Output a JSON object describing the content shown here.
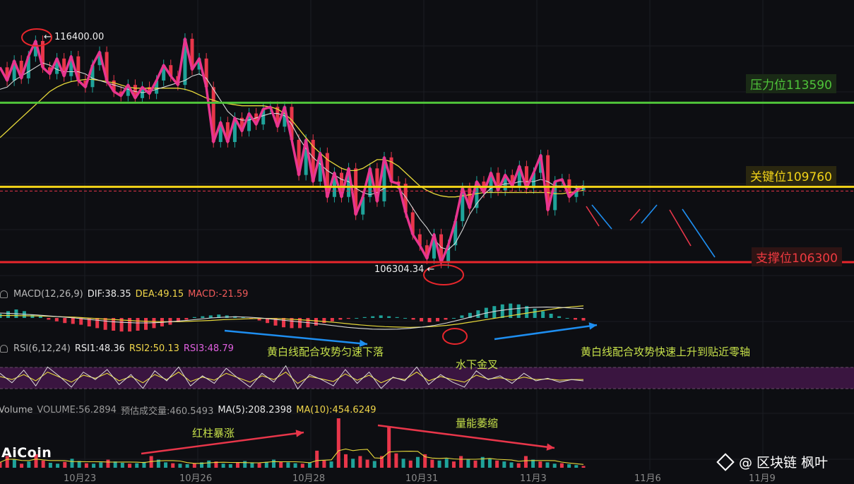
{
  "chart_data": {
    "type": "candlestick",
    "symbol_prices": {
      "high_marker": "← 116400.00",
      "low_marker": "106304.34 ←"
    },
    "levels": [
      {
        "label": "压力位113590",
        "value": 113590,
        "color": "#4fc43a"
      },
      {
        "label": "关键位109760",
        "value": 109760,
        "color": "#f2d318"
      },
      {
        "label": "支撑位106300",
        "value": 106300,
        "color": "#e8262c"
      }
    ],
    "price_range": [
      105400,
      117300
    ],
    "close_path": [
      115200,
      114600,
      115500,
      114700,
      115700,
      116400,
      115200,
      114900,
      115600,
      114800,
      115700,
      114600,
      114300,
      115300,
      115900,
      114600,
      114100,
      113900,
      114400,
      113800,
      114300,
      114000,
      114600,
      115300,
      114800,
      114400,
      116500,
      115100,
      115600,
      114300,
      111800,
      112700,
      111800,
      112900,
      112300,
      113100,
      112600,
      113300,
      113400,
      112500,
      113400,
      111900,
      110300,
      111900,
      110000,
      111300,
      109300,
      110400,
      109300,
      110600,
      108500,
      109300,
      110600,
      109100,
      111100,
      110000,
      109900,
      108600,
      107600,
      107100,
      106500,
      107600,
      106304,
      107100,
      108200,
      109700,
      108800,
      110000,
      109500,
      110400,
      109600,
      110300,
      109800,
      110700,
      109700,
      110400,
      111200,
      108700,
      110000,
      110100,
      109300,
      109600,
      109800
    ],
    "ma_short": [
      114200,
      114300,
      114600,
      114800,
      115000,
      115200,
      115400,
      115300,
      115100,
      115000,
      115000,
      115000,
      114900,
      114700,
      114600,
      114500,
      114400,
      114300,
      114200,
      114100,
      114050,
      114100,
      114200,
      114300,
      114400,
      114500,
      114600,
      114800,
      114900,
      114700,
      114200,
      113700,
      113200,
      112900,
      112800,
      112800,
      112900,
      113000,
      113100,
      113100,
      113000,
      112600,
      112000,
      111500,
      111100,
      110800,
      110500,
      110300,
      110100,
      110000,
      109700,
      109500,
      109400,
      109500,
      109700,
      109800,
      109700,
      109300,
      108800,
      108300,
      107900,
      107400,
      107000,
      106900,
      107200,
      107800,
      108500,
      109000,
      109400,
      109700,
      109800,
      109900,
      109900,
      110000,
      110000,
      110000,
      110100,
      110000,
      109800,
      109800,
      109800,
      109700,
      109700
    ],
    "ma_long": [
      112000,
      112300,
      112600,
      112900,
      113200,
      113500,
      113800,
      114100,
      114300,
      114450,
      114550,
      114600,
      114650,
      114650,
      114600,
      114550,
      114500,
      114400,
      114300,
      114250,
      114250,
      114250,
      114250,
      114250,
      114250,
      114250,
      114200,
      114100,
      113950,
      113800,
      113700,
      113600,
      113550,
      113500,
      113450,
      113450,
      113450,
      113450,
      113400,
      113300,
      113100,
      112800,
      112400,
      112000,
      111600,
      111300,
      111000,
      110800,
      110600,
      110500,
      110500,
      110600,
      110800,
      111000,
      111000,
      110900,
      110700,
      110400,
      110100,
      109800,
      109600,
      109450,
      109350,
      109300,
      109300,
      109350,
      109400,
      109450,
      109500,
      109500,
      109500,
      109500,
      109500,
      109500,
      109500,
      109500,
      109500,
      109500,
      109450,
      109450,
      109500,
      109550,
      109600
    ],
    "macd": {
      "label": "MACD(12,26,9)",
      "dif": "DIF:38.35",
      "dea": "DEA:49.15",
      "macd": "MACD:-21.59",
      "hist": [
        5,
        8,
        10,
        8,
        4,
        2,
        -2,
        -4,
        -6,
        -7,
        -8,
        -10,
        -12,
        -14,
        -15,
        -16,
        -16,
        -15,
        -14,
        -12,
        -10,
        -8,
        -5,
        -2,
        1,
        2,
        3,
        4,
        3,
        2,
        1,
        -1,
        -3,
        -6,
        -9,
        -11,
        -12,
        -12,
        -11,
        -9,
        -6,
        -4,
        -2,
        -1,
        0,
        1,
        2,
        3,
        2,
        1,
        0,
        -2,
        -4,
        -5,
        -4,
        -2,
        0,
        3,
        6,
        9,
        12,
        14,
        16,
        17,
        16,
        14,
        11,
        8,
        5,
        2,
        0,
        -2,
        -3
      ],
      "dif_line": [
        20,
        18,
        15,
        12,
        8,
        4,
        0,
        -5,
        -10,
        -15,
        -18,
        -20,
        -20,
        -18,
        -14,
        -10,
        -5,
        0,
        3,
        5,
        3,
        0,
        -5,
        -10,
        -15,
        -20,
        -26,
        -32,
        -38,
        -42,
        -45,
        -46,
        -45,
        -42,
        -37,
        -30,
        -20,
        -8,
        5,
        18,
        28,
        35,
        40,
        43,
        44,
        43,
        40,
        38
      ],
      "dea_line": [
        10,
        10,
        9,
        8,
        7,
        5,
        3,
        0,
        -3,
        -6,
        -9,
        -12,
        -14,
        -15,
        -15,
        -14,
        -12,
        -10,
        -7,
        -5,
        -3,
        -2,
        -2,
        -4,
        -7,
        -10,
        -14,
        -18,
        -23,
        -28,
        -32,
        -35,
        -37,
        -38,
        -37,
        -34,
        -30,
        -24,
        -16,
        -8,
        0,
        8,
        16,
        24,
        32,
        40,
        45,
        49
      ]
    },
    "rsi": {
      "label": "RSI(6,12,24)",
      "rsi1": "RSI1:48.36",
      "rsi2": "RSI2:50.13",
      "rsi3": "RSI3:48.79",
      "band": [
        30,
        70
      ],
      "rsi1_line": [
        60,
        45,
        65,
        40,
        70,
        55,
        38,
        62,
        50,
        66,
        42,
        58,
        36,
        64,
        48,
        70,
        40,
        56,
        44,
        68,
        52,
        38,
        60,
        46,
        72,
        35,
        58,
        50,
        40,
        66,
        44,
        62,
        36,
        54,
        48,
        70,
        42,
        58,
        46,
        38,
        64,
        50,
        56,
        44,
        60,
        48,
        52,
        46,
        50,
        48
      ],
      "rsi2_line": [
        55,
        50,
        58,
        48,
        62,
        54,
        46,
        57,
        52,
        60,
        48,
        55,
        45,
        58,
        50,
        62,
        47,
        54,
        49,
        60,
        53,
        46,
        56,
        50,
        62,
        44,
        55,
        51,
        47,
        59,
        49,
        57,
        45,
        53,
        50,
        62,
        48,
        55,
        50,
        46,
        57,
        51,
        53,
        49,
        54,
        50,
        51,
        49,
        50,
        50
      ]
    },
    "volume": {
      "label": "Volume",
      "volume": "VOLUME:56.2894",
      "est": "预估成交量:460.5493",
      "ma5": "MA(5):208.2398",
      "ma10": "MA(10):454.6249",
      "bars": [
        120,
        260,
        180,
        90,
        140,
        300,
        160,
        110,
        90,
        130,
        200,
        150,
        100,
        90,
        120,
        180,
        140,
        110,
        90,
        100,
        130,
        260,
        180,
        120,
        100,
        90,
        80,
        100,
        120,
        160,
        140,
        90,
        80,
        110,
        150,
        120,
        100,
        130,
        180,
        140,
        120,
        100,
        90,
        110,
        380,
        160,
        140,
        1100,
        300,
        200,
        260,
        180,
        150,
        260,
        900,
        320,
        200,
        160,
        240,
        300,
        180,
        160,
        200,
        140,
        260,
        180,
        160,
        240,
        200,
        160,
        140,
        120,
        100,
        260,
        180,
        140,
        120,
        90,
        100,
        80,
        60,
        40
      ]
    },
    "x_ticks": [
      "10月23",
      "10月26",
      "10月28",
      "10月31",
      "11月3",
      "11月6",
      "11月9"
    ]
  },
  "annotations": {
    "macd_fall": "黄白线配合攻势匀速下落",
    "macd_rise": "黄白线配合攻势快速上升到贴近零轴",
    "golden_cross": "水下金叉",
    "red_bars": "红柱暴涨",
    "volume_shrink": "量能萎缩"
  },
  "brand": "AiCoin",
  "watermark": "@ 区块链 枫叶",
  "colors": {
    "up": "#1fa39a",
    "down": "#e8364a",
    "pink_path": "#e8358f",
    "ma_white": "#d8d8d8",
    "ma_yellow": "#e6d83a",
    "arrow_blue": "#1e8ef0",
    "arrow_red": "#e8364a"
  }
}
